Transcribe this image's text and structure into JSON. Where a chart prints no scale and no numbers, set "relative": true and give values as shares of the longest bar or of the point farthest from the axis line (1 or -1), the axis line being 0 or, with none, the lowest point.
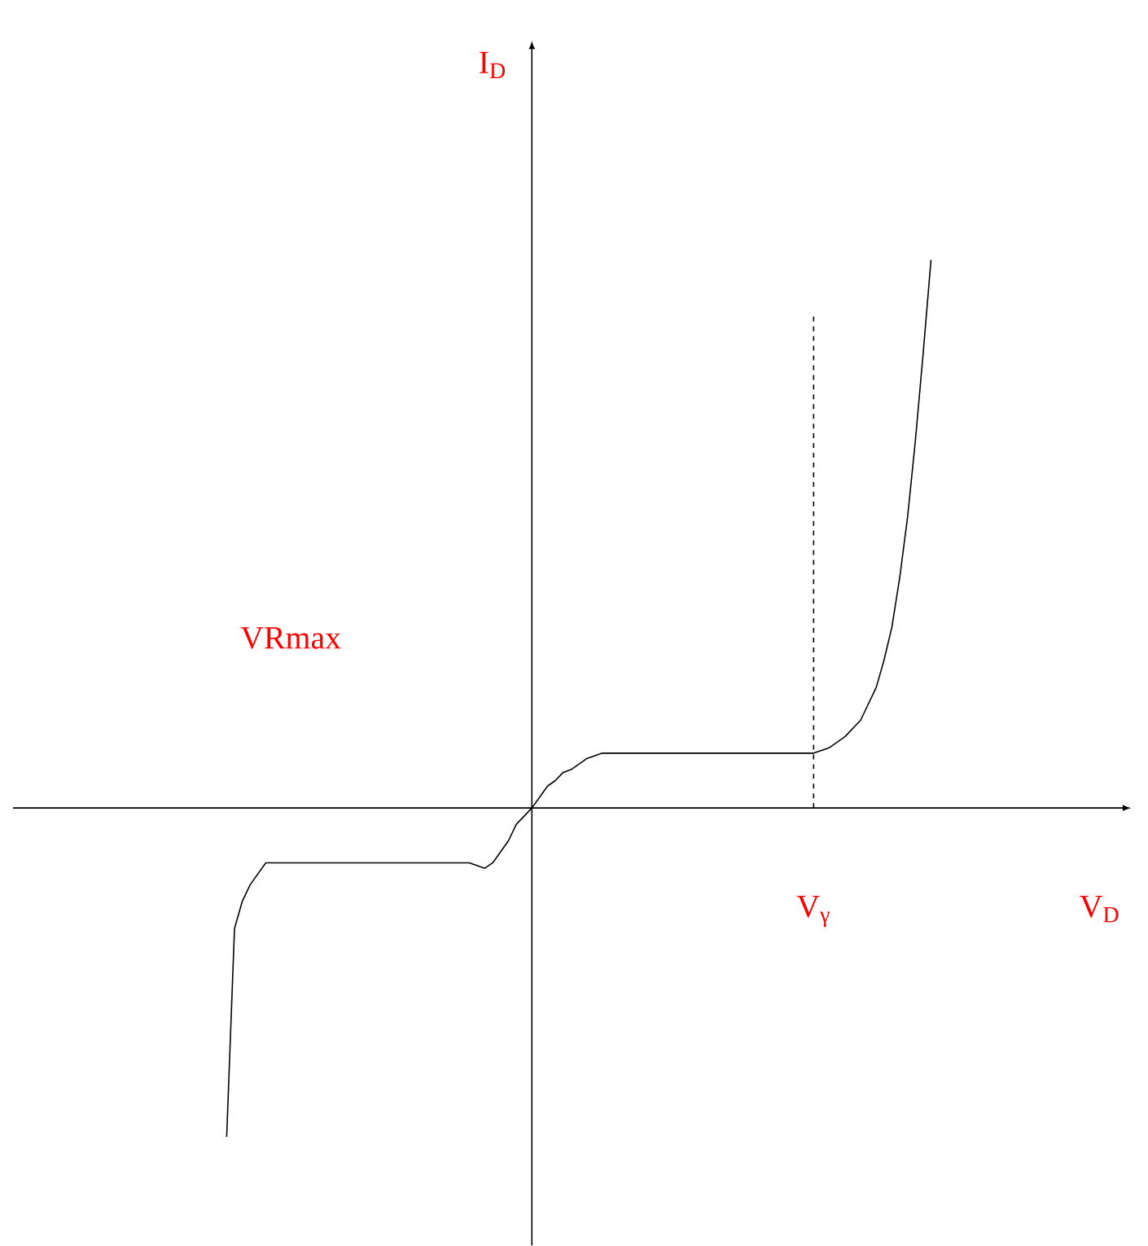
{
  "chart_data": {
    "type": "line",
    "relative": true,
    "xlabel": "V$_{D}$",
    "color": "#000000",
    "categories": [
      null,
      null,
      null,
      null,
      null,
      null,
      null,
      null,
      null,
      null,
      null,
      null,
      null,
      null,
      null,
      null,
      null,
      null,
      null,
      null,
      null,
      null,
      null,
      null,
      null,
      null,
      null,
      null,
      null,
      null,
      null,
      null,
      null,
      null,
      null,
      null,
      null,
      null,
      null,
      null,
      null,
      null,
      null,
      null,
      null,
      null,
      null,
      null,
      null,
      null,
      null,
      null,
      null,
      null,
      null,
      null,
      null,
      null,
      null,
      null,
      null,
      null,
      null,
      null,
      null,
      null,
      null,
      null,
      null,
      null,
      null,
      null,
      null,
      null,
      null,
      null,
      null,
      null,
      null,
      null,
      null,
      null,
      null,
      null,
      null,
      null,
      null,
      null,
      null,
      null,
      null
    ],
    "values": [
      -0.6,
      -0.22,
      -0.17,
      -0.14,
      -0.12,
      -0.1,
      -0.1,
      -0.1,
      -0.1,
      -0.1,
      -0.1,
      -0.1,
      -0.1,
      -0.1,
      -0.1,
      -0.1,
      -0.1,
      -0.1,
      -0.1,
      -0.1,
      -0.1,
      -0.1,
      -0.1,
      -0.1,
      -0.1,
      -0.1,
      -0.1,
      -0.1,
      -0.1,
      -0.1,
      -0.1,
      -0.1,
      -0.105,
      -0.11,
      -0.1,
      -0.08,
      -0.06,
      -0.03,
      -0.015,
      0,
      0.02,
      0.04,
      0.05,
      0.065,
      0.07,
      0.08,
      0.09,
      0.095,
      0.1,
      0.1,
      0.1,
      0.1,
      0.1,
      0.1,
      0.1,
      0.1,
      0.1,
      0.1,
      0.1,
      0.1,
      0.1,
      0.1,
      0.1,
      0.1,
      0.1,
      0.1,
      0.1,
      0.1,
      0.1,
      0.1,
      0.1,
      0.1,
      0.1,
      0.1,
      0.1,
      0.1,
      0.105,
      0.11,
      0.12,
      0.13,
      0.145,
      0.16,
      0.19,
      0.22,
      0.27,
      0.33,
      0.42,
      0.53,
      0.67,
      0.83,
      1.0
    ],
    "annotations": [
      "I$_{D}$",
      "VRmax",
      "V$_{γ}$"
    ]
  }
}
